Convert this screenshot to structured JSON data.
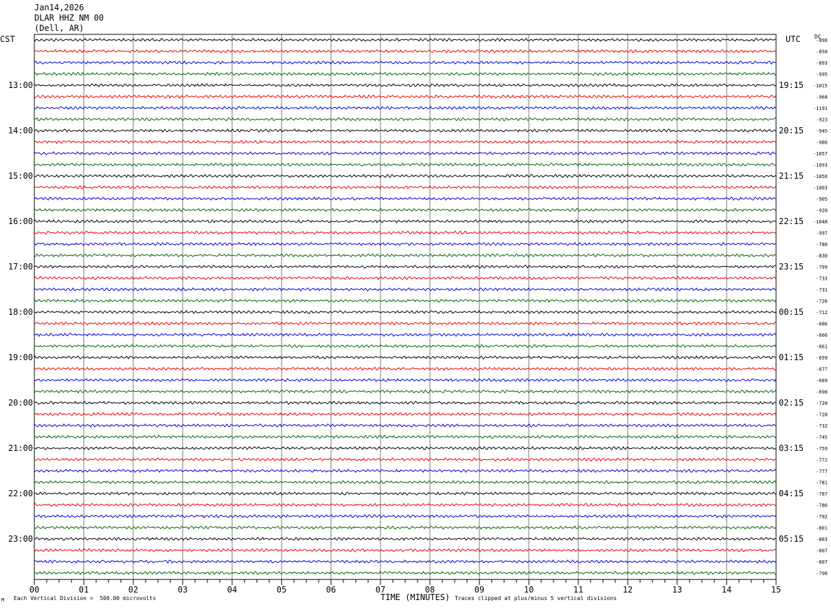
{
  "header": {
    "date": "Jan14,2026",
    "station": "DLAR HHZ NM 00",
    "location": "(Dell, AR)"
  },
  "left_zone": "CST",
  "right_zone": "UTC",
  "dc_header": "DC",
  "footer": {
    "scale_note": "Each Vertical Division =  500.00 microvolts",
    "x_axis_title": "TIME (MINUTES)",
    "clip_note": "Traces clipped at plus/minus 5 vertical divisions",
    "corner_mark": "M"
  },
  "chart_data": {
    "type": "line",
    "title": "",
    "xlabel": "TIME (MINUTES)",
    "xlim": [
      0,
      15
    ],
    "x_ticks": [
      "00",
      "01",
      "02",
      "03",
      "04",
      "05",
      "06",
      "07",
      "08",
      "09",
      "10",
      "11",
      "12",
      "13",
      "14",
      "15"
    ],
    "grid": "vertical-minute-lines",
    "trace_colors": [
      "#000000",
      "#ee0000",
      "#0000cc",
      "#006400"
    ],
    "left_hour_labels": [
      "13:00",
      "14:00",
      "15:00",
      "16:00",
      "17:00",
      "18:00",
      "19:00",
      "20:00",
      "21:00",
      "22:00",
      "23:00"
    ],
    "right_hour_labels": [
      "19:15",
      "20:15",
      "21:15",
      "22:15",
      "23:15",
      "00:15",
      "01:15",
      "02:15",
      "03:15",
      "04:15",
      "05:15"
    ],
    "dc_offsets": [
      -898,
      -858,
      -893,
      -995,
      -1015,
      -968,
      -1191,
      -923,
      -945,
      -986,
      -1057,
      -1093,
      -1058,
      -1003,
      -905,
      -920,
      -1048,
      -997,
      -780,
      -830,
      -799,
      -733,
      -731,
      -726,
      -712,
      -686,
      -666,
      -661,
      -659,
      -677,
      -689,
      -698,
      -720,
      -728,
      -732,
      -745,
      -759,
      -772,
      -777,
      -781,
      -787,
      -786,
      -792,
      -801,
      -803,
      -807,
      -807,
      -796
    ]
  }
}
